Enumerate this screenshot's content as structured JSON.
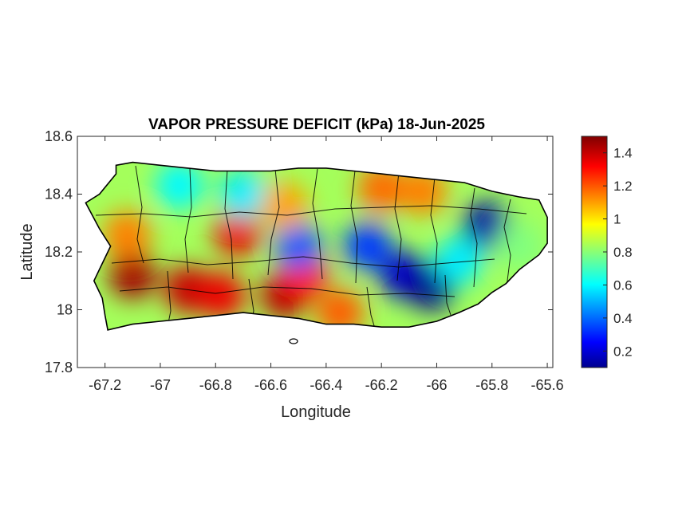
{
  "figure": {
    "title": "VAPOR PRESSURE DEFICIT (kPa) 18-Jun-2025",
    "xlabel": "Longitude",
    "ylabel": "Latitude"
  },
  "axes": {
    "xlim": [
      -67.3,
      -65.58
    ],
    "ylim": [
      17.8,
      18.6
    ],
    "xticks": [
      {
        "value": -67.2,
        "label": "-67.2"
      },
      {
        "value": -67.0,
        "label": "-67"
      },
      {
        "value": -66.8,
        "label": "-66.8"
      },
      {
        "value": -66.6,
        "label": "-66.6"
      },
      {
        "value": -66.4,
        "label": "-66.4"
      },
      {
        "value": -66.2,
        "label": "-66.2"
      },
      {
        "value": -66.0,
        "label": "-66"
      },
      {
        "value": -65.8,
        "label": "-65.8"
      },
      {
        "value": -65.6,
        "label": "-65.6"
      }
    ],
    "yticks": [
      {
        "value": 17.8,
        "label": "17.8"
      },
      {
        "value": 18.0,
        "label": "18"
      },
      {
        "value": 18.2,
        "label": "18.2"
      },
      {
        "value": 18.4,
        "label": "18.4"
      },
      {
        "value": 18.6,
        "label": "18.6"
      }
    ]
  },
  "colorbar": {
    "range": [
      0.1,
      1.5
    ],
    "colormap": "jet",
    "ticks": [
      {
        "value": 0.2,
        "label": "0.2"
      },
      {
        "value": 0.4,
        "label": "0.4"
      },
      {
        "value": 0.6,
        "label": "0.6"
      },
      {
        "value": 0.8,
        "label": "0.8"
      },
      {
        "value": 1.0,
        "label": "1"
      },
      {
        "value": 1.2,
        "label": "1.2"
      },
      {
        "value": 1.4,
        "label": "1.4"
      }
    ]
  },
  "chart_data": {
    "type": "heatmap",
    "title": "VAPOR PRESSURE DEFICIT (kPa) 18-Jun-2025",
    "xlabel": "Longitude",
    "ylabel": "Latitude",
    "xlim": [
      -67.3,
      -65.58
    ],
    "ylim": [
      17.8,
      18.6
    ],
    "zlim": [
      0.1,
      1.5
    ],
    "base_value": 0.85,
    "island_outline": [
      [
        -67.27,
        18.37
      ],
      [
        -67.22,
        18.4
      ],
      [
        -67.16,
        18.47
      ],
      [
        -67.16,
        18.5
      ],
      [
        -67.1,
        18.51
      ],
      [
        -67.0,
        18.5
      ],
      [
        -66.9,
        18.49
      ],
      [
        -66.8,
        18.48
      ],
      [
        -66.7,
        18.48
      ],
      [
        -66.6,
        18.48
      ],
      [
        -66.5,
        18.49
      ],
      [
        -66.4,
        18.49
      ],
      [
        -66.3,
        18.48
      ],
      [
        -66.2,
        18.47
      ],
      [
        -66.1,
        18.46
      ],
      [
        -66.0,
        18.45
      ],
      [
        -65.9,
        18.44
      ],
      [
        -65.8,
        18.41
      ],
      [
        -65.7,
        18.39
      ],
      [
        -65.63,
        18.38
      ],
      [
        -65.6,
        18.32
      ],
      [
        -65.6,
        18.23
      ],
      [
        -65.63,
        18.19
      ],
      [
        -65.7,
        18.14
      ],
      [
        -65.75,
        18.09
      ],
      [
        -65.8,
        18.06
      ],
      [
        -65.85,
        18.02
      ],
      [
        -65.92,
        17.99
      ],
      [
        -66.0,
        17.96
      ],
      [
        -66.1,
        17.94
      ],
      [
        -66.2,
        17.94
      ],
      [
        -66.3,
        17.95
      ],
      [
        -66.4,
        17.95
      ],
      [
        -66.5,
        17.97
      ],
      [
        -66.6,
        17.98
      ],
      [
        -66.7,
        17.99
      ],
      [
        -66.8,
        17.98
      ],
      [
        -66.9,
        17.97
      ],
      [
        -67.0,
        17.96
      ],
      [
        -67.1,
        17.95
      ],
      [
        -67.19,
        17.93
      ],
      [
        -67.2,
        17.98
      ],
      [
        -67.21,
        18.04
      ],
      [
        -67.24,
        18.1
      ],
      [
        -67.21,
        18.16
      ],
      [
        -67.18,
        18.22
      ],
      [
        -67.22,
        18.28
      ],
      [
        -67.27,
        18.37
      ]
    ],
    "field_anomalies": [
      {
        "lon": -67.1,
        "lat": 18.12,
        "value": 1.45
      },
      {
        "lon": -66.9,
        "lat": 18.07,
        "value": 1.4
      },
      {
        "lon": -66.78,
        "lat": 18.05,
        "value": 1.35
      },
      {
        "lon": -66.55,
        "lat": 18.05,
        "value": 1.42
      },
      {
        "lon": -66.48,
        "lat": 18.12,
        "value": 1.3
      },
      {
        "lon": -66.72,
        "lat": 18.27,
        "value": 1.35
      },
      {
        "lon": -67.12,
        "lat": 18.26,
        "value": 1.15
      },
      {
        "lon": -66.35,
        "lat": 17.99,
        "value": 1.2
      },
      {
        "lon": -66.2,
        "lat": 18.42,
        "value": 1.18
      },
      {
        "lon": -66.05,
        "lat": 18.41,
        "value": 1.15
      },
      {
        "lon": -66.7,
        "lat": 18.4,
        "value": 0.6
      },
      {
        "lon": -66.93,
        "lat": 18.43,
        "value": 0.62
      },
      {
        "lon": -66.5,
        "lat": 18.22,
        "value": 0.4
      },
      {
        "lon": -66.25,
        "lat": 18.22,
        "value": 0.35
      },
      {
        "lon": -66.12,
        "lat": 18.12,
        "value": 0.2
      },
      {
        "lon": -66.02,
        "lat": 18.08,
        "value": 0.12
      },
      {
        "lon": -65.82,
        "lat": 18.29,
        "value": 0.15
      },
      {
        "lon": -65.92,
        "lat": 18.17,
        "value": 0.6
      },
      {
        "lon": -65.7,
        "lat": 18.22,
        "value": 0.8
      },
      {
        "lon": -66.55,
        "lat": 18.36,
        "value": 1.1
      }
    ]
  }
}
